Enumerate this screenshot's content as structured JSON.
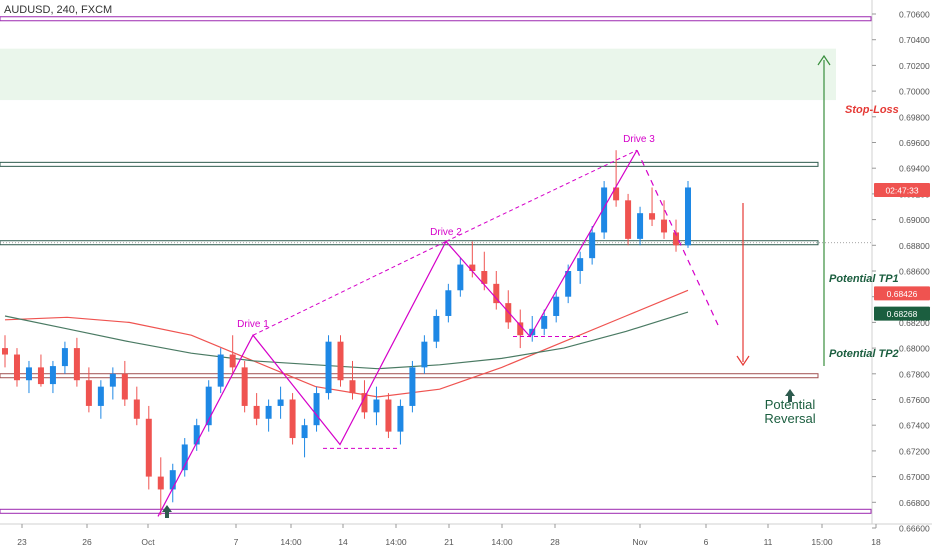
{
  "chart_data": {
    "type": "candlestick",
    "title": "AUDUSD, 240, FXCM",
    "y_axis": {
      "range": [
        0.6652,
        0.7074
      ],
      "ticks": [
        "0.70600",
        "0.70400",
        "0.70200",
        "0.70000",
        "0.69800",
        "0.69600",
        "0.69400",
        "0.69200",
        "0.69000",
        "0.68800",
        "0.68600",
        "0.68400",
        "0.68200",
        "0.68000",
        "0.67800",
        "0.67600",
        "0.67400",
        "0.67200",
        "0.67000",
        "0.66800",
        "0.66600"
      ]
    },
    "x_axis": {
      "ticks": [
        "23",
        "26",
        "Oct",
        "7",
        "14:00",
        "14",
        "14:00",
        "21",
        "14:00",
        "28",
        "Nov",
        "6",
        "11",
        "15:00",
        "18"
      ]
    },
    "price_labels": [
      {
        "text": "02:47:33",
        "value": 0.6923,
        "color": "#ef5350"
      },
      {
        "text": "0.68426",
        "value": 0.68426,
        "color": "#ef5350"
      },
      {
        "text": "0.68268",
        "value": 0.68268,
        "color": "#1b5e3f"
      }
    ],
    "annotations": {
      "stop_loss": "Stop-Loss",
      "tp1": "Potential TP1",
      "tp2": "Potential TP2",
      "reversal_1": "Potential",
      "reversal_2": "Reversal",
      "drive1": "Drive 1",
      "drive2": "Drive 2",
      "drive3": "Drive 3"
    },
    "levels": [
      {
        "value": 0.70563,
        "color": "#9c27b0"
      },
      {
        "value": 0.6943,
        "color": "#2e5b4e"
      },
      {
        "value": 0.6882,
        "color": "#2e5b4e"
      },
      {
        "value": 0.67785,
        "color": "#a05050"
      },
      {
        "value": 0.6673,
        "color": "#9c27b0"
      }
    ],
    "stop_zone": [
      0.6993,
      0.7033
    ],
    "drive_points": [
      {
        "date": "Oct 1",
        "price": 0.6669
      },
      {
        "date": "Oct 9",
        "price": 0.681
      },
      {
        "date": "Oct 15",
        "price": 0.6725
      },
      {
        "date": "Oct 21",
        "price": 0.6883
      },
      {
        "date": "Oct 25",
        "price": 0.6809
      },
      {
        "date": "Oct 31",
        "price": 0.6954
      }
    ],
    "candle_series_approx": [
      [
        0.68,
        0.681,
        0.6785,
        0.6795
      ],
      [
        0.6795,
        0.68,
        0.677,
        0.6775
      ],
      [
        0.6775,
        0.679,
        0.6765,
        0.6785
      ],
      [
        0.6785,
        0.6795,
        0.677,
        0.6772
      ],
      [
        0.6772,
        0.679,
        0.6765,
        0.6786
      ],
      [
        0.6786,
        0.6805,
        0.678,
        0.68
      ],
      [
        0.68,
        0.6808,
        0.677,
        0.6775
      ],
      [
        0.6775,
        0.6785,
        0.675,
        0.6755
      ],
      [
        0.6755,
        0.6775,
        0.6745,
        0.677
      ],
      [
        0.677,
        0.6785,
        0.676,
        0.678
      ],
      [
        0.678,
        0.679,
        0.6755,
        0.676
      ],
      [
        0.676,
        0.677,
        0.674,
        0.6745
      ],
      [
        0.6745,
        0.6755,
        0.669,
        0.67
      ],
      [
        0.67,
        0.6715,
        0.667,
        0.669
      ],
      [
        0.669,
        0.671,
        0.668,
        0.6705
      ],
      [
        0.6705,
        0.673,
        0.67,
        0.6725
      ],
      [
        0.6725,
        0.6745,
        0.672,
        0.674
      ],
      [
        0.674,
        0.6775,
        0.6735,
        0.677
      ],
      [
        0.677,
        0.68,
        0.6765,
        0.6795
      ],
      [
        0.6795,
        0.681,
        0.678,
        0.6785
      ],
      [
        0.6785,
        0.679,
        0.675,
        0.6755
      ],
      [
        0.6755,
        0.6765,
        0.674,
        0.6745
      ],
      [
        0.6745,
        0.676,
        0.6735,
        0.6755
      ],
      [
        0.6755,
        0.677,
        0.6745,
        0.676
      ],
      [
        0.676,
        0.6765,
        0.6725,
        0.673
      ],
      [
        0.673,
        0.6745,
        0.6715,
        0.674
      ],
      [
        0.674,
        0.677,
        0.6735,
        0.6765
      ],
      [
        0.6765,
        0.681,
        0.676,
        0.6805
      ],
      [
        0.6805,
        0.681,
        0.677,
        0.6775
      ],
      [
        0.6775,
        0.679,
        0.676,
        0.6765
      ],
      [
        0.6765,
        0.6775,
        0.6745,
        0.675
      ],
      [
        0.675,
        0.677,
        0.674,
        0.676
      ],
      [
        0.676,
        0.6765,
        0.673,
        0.6735
      ],
      [
        0.6735,
        0.676,
        0.6725,
        0.6755
      ],
      [
        0.6755,
        0.679,
        0.675,
        0.6785
      ],
      [
        0.6785,
        0.681,
        0.678,
        0.6805
      ],
      [
        0.6805,
        0.683,
        0.68,
        0.6825
      ],
      [
        0.6825,
        0.685,
        0.682,
        0.6845
      ],
      [
        0.6845,
        0.687,
        0.684,
        0.6865
      ],
      [
        0.6865,
        0.6883,
        0.6855,
        0.686
      ],
      [
        0.686,
        0.6875,
        0.6845,
        0.685
      ],
      [
        0.685,
        0.686,
        0.683,
        0.6835
      ],
      [
        0.6835,
        0.6845,
        0.6815,
        0.682
      ],
      [
        0.682,
        0.683,
        0.68,
        0.681
      ],
      [
        0.681,
        0.6825,
        0.6805,
        0.6815
      ],
      [
        0.6815,
        0.683,
        0.681,
        0.6825
      ],
      [
        0.6825,
        0.6845,
        0.682,
        0.684
      ],
      [
        0.684,
        0.6865,
        0.6835,
        0.686
      ],
      [
        0.686,
        0.6875,
        0.685,
        0.687
      ],
      [
        0.687,
        0.6895,
        0.6865,
        0.689
      ],
      [
        0.689,
        0.693,
        0.6885,
        0.6925
      ],
      [
        0.6925,
        0.6954,
        0.691,
        0.6915
      ],
      [
        0.6915,
        0.692,
        0.688,
        0.6885
      ],
      [
        0.6885,
        0.691,
        0.688,
        0.6905
      ],
      [
        0.6905,
        0.6925,
        0.6895,
        0.69
      ],
      [
        0.69,
        0.6915,
        0.6885,
        0.689
      ],
      [
        0.689,
        0.69,
        0.6875,
        0.688
      ],
      [
        0.688,
        0.693,
        0.6878,
        0.6925
      ]
    ],
    "moving_averages": [
      {
        "color": "#ef5350",
        "values": [
          0.6822,
          0.6824,
          0.682,
          0.681,
          0.679,
          0.677,
          0.6762,
          0.6768,
          0.6785,
          0.6805,
          0.6825,
          0.6845
        ]
      },
      {
        "color": "#4a7a63",
        "values": [
          0.6825,
          0.6815,
          0.6805,
          0.6796,
          0.679,
          0.6787,
          0.6784,
          0.6787,
          0.6792,
          0.68,
          0.6813,
          0.6828
        ]
      }
    ]
  }
}
